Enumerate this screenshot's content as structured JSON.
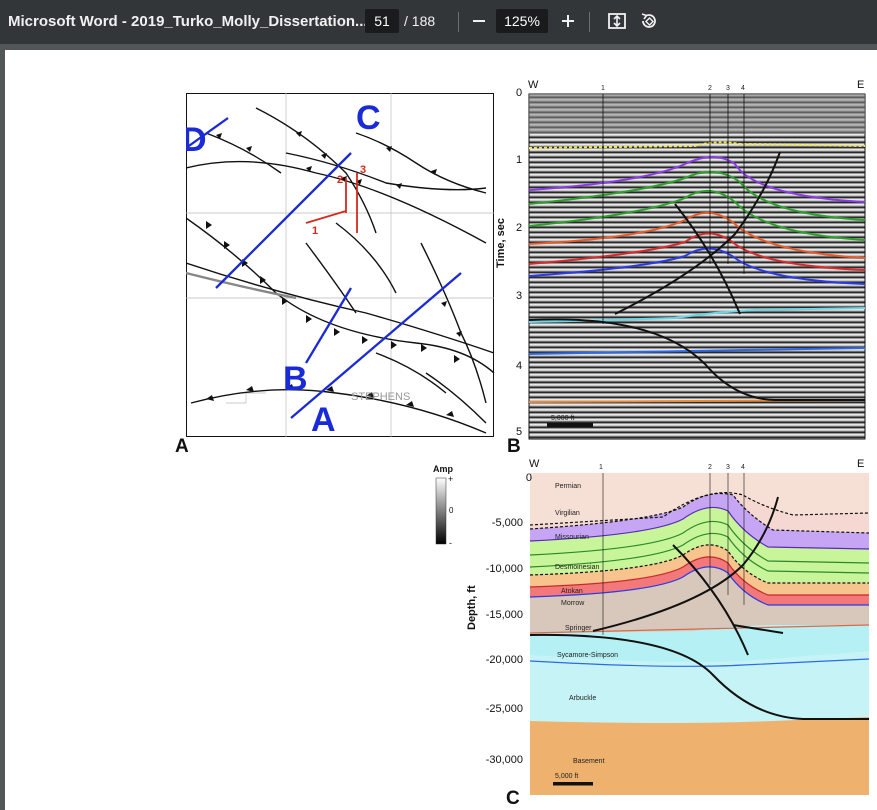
{
  "toolbar": {
    "title": "Microsoft Word - 2019_Turko_Molly_Dissertation...",
    "current_page": "51",
    "total_pages": "/ 188",
    "zoom": "125%",
    "zoom_out_icon": "minus-icon",
    "zoom_in_icon": "plus-icon",
    "fit_icon": "fit-page-icon",
    "rotate_icon": "rotate-icon"
  },
  "figure": {
    "panel_a": {
      "letter": "A",
      "line_labels": [
        "C",
        "D",
        "B",
        "A"
      ],
      "well_labels": [
        "1",
        "2",
        "3"
      ],
      "county_label": "STEPHENS"
    },
    "panel_b": {
      "letter": "B",
      "west": "W",
      "east": "E",
      "well_markers": [
        "1",
        "2",
        "3",
        "4"
      ],
      "ylabel": "Time, sec",
      "yticks": [
        "0",
        "1",
        "2",
        "3",
        "4",
        "5"
      ],
      "scale_bar": "5,000 ft"
    },
    "colorbar": {
      "title": "Amp",
      "plus": "+",
      "zero": "0",
      "minus": "-"
    },
    "panel_c": {
      "letter": "C",
      "west": "W",
      "east": "E",
      "well_markers": [
        "1",
        "2",
        "3",
        "4"
      ],
      "ylabel": "Depth, ft",
      "yticks": [
        "0",
        "-5,000",
        "-10,000",
        "-15,000",
        "-20,000",
        "-25,000",
        "-30,000"
      ],
      "units": [
        "Permian",
        "Virgilian",
        "Missourian",
        "Desmoinesian",
        "Atokan",
        "Morrow",
        "Springer",
        "Sycamore-Simpson",
        "Arbuckle",
        "Basement"
      ],
      "scale_bar": "5,000 ft"
    }
  },
  "colors": {
    "toolbar_bg": "#323639",
    "viewer_bg": "#525659",
    "line_blue": "#1a2ad6",
    "well_red": "#d8281c",
    "permian": "#f6e0d6",
    "virgilian": "#f5d8d2",
    "missourian": "#c6a6f4",
    "desmoinesian": "#c8f49a",
    "atokan": "#f8c48e",
    "morrow": "#f2787a",
    "springer": "#d8c8bc",
    "sycamore": "#b4f0f4",
    "arbuckle": "#c6f4f6",
    "basement": "#eeb16e"
  }
}
